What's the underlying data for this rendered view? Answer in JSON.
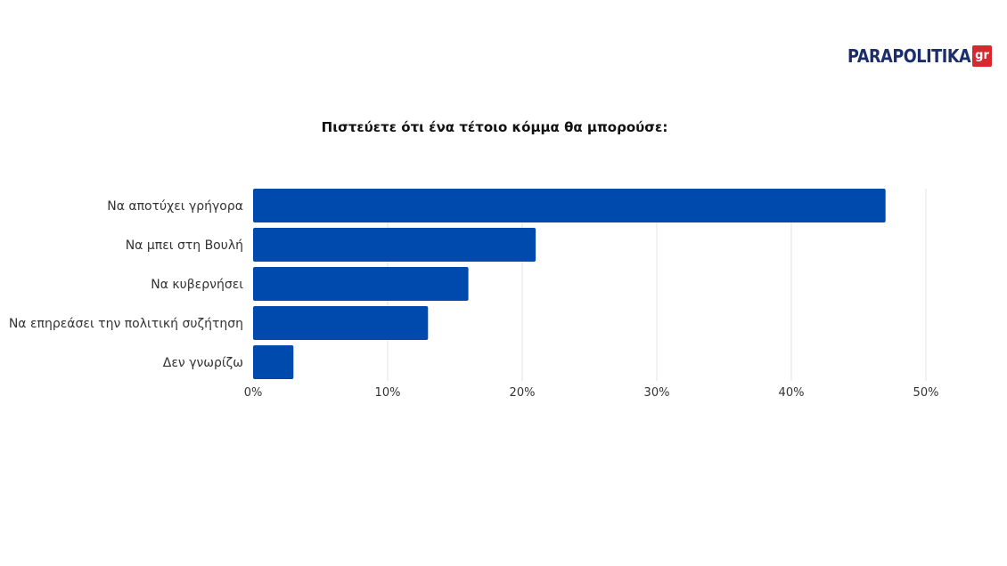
{
  "brand": {
    "name": "PARAPOLITIKA",
    "suffix": "gr",
    "text_color": "#1c2d6b",
    "badge_color": "#d6282e"
  },
  "chart_data": {
    "type": "bar",
    "orientation": "horizontal",
    "title": "Πιστεύετε ότι ένα τέτοιο κόμμα θα μπορούσε:",
    "categories": [
      "Να αποτύχει γρήγορα",
      "Να μπει στη Βουλή",
      "Να κυβερνήσει",
      "Να επηρεάσει την πολιτική συζήτηση",
      "Δεν γνωρίζω"
    ],
    "values": [
      47,
      21,
      16,
      13,
      3
    ],
    "unit": "%",
    "xlim": [
      0,
      50
    ],
    "xticks": [
      0,
      10,
      20,
      30,
      40,
      50
    ],
    "xtick_labels": [
      "0%",
      "10%",
      "20%",
      "30%",
      "40%",
      "50%"
    ],
    "bar_color": "#004aad",
    "grid": true,
    "xlabel": "",
    "ylabel": ""
  }
}
